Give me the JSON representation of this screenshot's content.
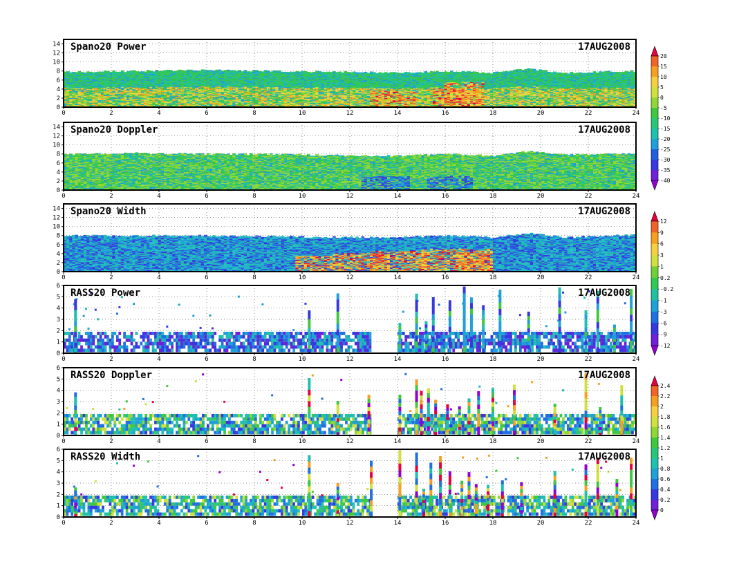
{
  "chart_data": [
    {
      "type": "heatmap",
      "title": "Spano20 Power",
      "date": "17AUG2008",
      "xlim": [
        0,
        24
      ],
      "x_ticks": [
        0,
        2,
        4,
        6,
        8,
        10,
        12,
        14,
        16,
        18,
        20,
        22,
        24
      ],
      "ylim": [
        0,
        15
      ],
      "y_ticks": [
        0,
        2,
        4,
        6,
        8,
        10,
        12,
        14
      ],
      "grid": true,
      "colorbar": "power",
      "echo_top": [
        [
          0,
          7.8
        ],
        [
          3,
          8.0
        ],
        [
          6,
          8.2
        ],
        [
          9,
          8.0
        ],
        [
          12,
          7.8
        ],
        [
          14,
          7.6
        ],
        [
          16,
          8.0
        ],
        [
          18,
          7.6
        ],
        [
          19.5,
          8.5
        ],
        [
          21,
          7.6
        ],
        [
          24,
          8.0
        ]
      ],
      "hotspots": [
        [
          13.8,
          2.0,
          1.0
        ],
        [
          16.5,
          2.5,
          1.0
        ],
        [
          16.8,
          4.0,
          0.8
        ]
      ]
    },
    {
      "type": "heatmap",
      "title": "Spano20 Doppler",
      "date": "17AUG2008",
      "xlim": [
        0,
        24
      ],
      "x_ticks": [
        0,
        2,
        4,
        6,
        8,
        10,
        12,
        14,
        16,
        18,
        20,
        22,
        24
      ],
      "ylim": [
        0,
        15
      ],
      "y_ticks": [
        0,
        2,
        4,
        6,
        8,
        10,
        12,
        14
      ],
      "grid": true,
      "colorbar": "power",
      "echo_top": [
        [
          0,
          8.0
        ],
        [
          3,
          8.2
        ],
        [
          6,
          8.0
        ],
        [
          9,
          8.0
        ],
        [
          12,
          7.6
        ],
        [
          14,
          7.6
        ],
        [
          16,
          8.0
        ],
        [
          18,
          7.6
        ],
        [
          19.5,
          8.6
        ],
        [
          21,
          7.8
        ],
        [
          24,
          8.2
        ]
      ],
      "hotspots": [
        [
          13.5,
          1.5,
          1.0
        ],
        [
          16.2,
          1.5,
          1.0
        ]
      ]
    },
    {
      "type": "heatmap",
      "title": "Spano20 Width",
      "date": "17AUG2008",
      "xlim": [
        0,
        24
      ],
      "x_ticks": [
        0,
        2,
        4,
        6,
        8,
        10,
        12,
        14,
        16,
        18,
        20,
        22,
        24
      ],
      "ylim": [
        0,
        15
      ],
      "y_ticks": [
        0,
        2,
        4,
        6,
        8,
        10,
        12,
        14
      ],
      "grid": true,
      "colorbar": "width",
      "echo_top": [
        [
          0,
          8.0
        ],
        [
          3,
          8.0
        ],
        [
          6,
          8.0
        ],
        [
          9,
          7.8
        ],
        [
          12,
          7.6
        ],
        [
          14,
          7.6
        ],
        [
          16,
          8.0
        ],
        [
          18,
          7.6
        ],
        [
          19.5,
          8.5
        ],
        [
          21,
          7.6
        ],
        [
          24,
          8.2
        ]
      ],
      "hotspots": [
        [
          10.5,
          2.0,
          0.8
        ],
        [
          12.5,
          2.5,
          1.2
        ],
        [
          14.0,
          3.0,
          1.2
        ],
        [
          16.5,
          3.5,
          1.5
        ],
        [
          17.2,
          2.5,
          0.8
        ]
      ]
    },
    {
      "type": "heatmap",
      "title": "RASS20 Power",
      "date": "17AUG2008",
      "xlim": [
        0,
        24
      ],
      "x_ticks": [
        0,
        2,
        4,
        6,
        8,
        10,
        12,
        14,
        16,
        18,
        20,
        22,
        24
      ],
      "ylim": [
        0,
        6
      ],
      "y_ticks": [
        0,
        1,
        2,
        3,
        4,
        5,
        6
      ],
      "grid": true,
      "colorbar": "width",
      "gap_hours": [
        [
          12.9,
          14.0
        ]
      ],
      "spikes": [
        0.5,
        10.3,
        11.5,
        14.1,
        14.8,
        15.2,
        15.5,
        16.2,
        16.8,
        17.1,
        17.6,
        18.3,
        19.5,
        20.8,
        21.9,
        22.4,
        23.1,
        23.8
      ]
    },
    {
      "type": "heatmap",
      "title": "RASS20 Doppler",
      "date": "17AUG2008",
      "xlim": [
        0,
        24
      ],
      "x_ticks": [
        0,
        2,
        4,
        6,
        8,
        10,
        12,
        14,
        16,
        18,
        20,
        22,
        24
      ],
      "ylim": [
        0,
        6
      ],
      "y_ticks": [
        0,
        1,
        2,
        3,
        4,
        5,
        6
      ],
      "grid": true,
      "colorbar": "doppler",
      "gap_hours": [
        [
          12.9,
          14.0
        ]
      ],
      "spikes": [
        0.5,
        10.3,
        11.5,
        12.8,
        14.1,
        14.8,
        15.0,
        15.3,
        15.6,
        16.1,
        16.6,
        17.0,
        17.4,
        18.0,
        18.9,
        20.6,
        21.9,
        22.5,
        23.4
      ]
    },
    {
      "type": "heatmap",
      "title": "RASS20 Width",
      "date": "17AUG2008",
      "xlim": [
        0,
        24
      ],
      "x_ticks": [
        0,
        2,
        4,
        6,
        8,
        10,
        12,
        14,
        16,
        18,
        20,
        22,
        24
      ],
      "ylim": [
        0,
        6
      ],
      "y_ticks": [
        0,
        1,
        2,
        3,
        4,
        5,
        6
      ],
      "grid": true,
      "colorbar": "doppler",
      "gap_hours": [
        [
          12.9,
          14.0
        ]
      ],
      "spikes": [
        0.5,
        10.3,
        11.5,
        12.9,
        14.1,
        14.8,
        15.1,
        15.4,
        15.8,
        16.2,
        16.7,
        17.0,
        17.3,
        17.8,
        18.4,
        19.2,
        20.6,
        21.9,
        22.4,
        23.2,
        23.8
      ]
    }
  ],
  "colorbars": {
    "power": {
      "labels": [
        "20",
        "15",
        "10",
        "5",
        "0",
        "-5",
        "-10",
        "-15",
        "-20",
        "-25",
        "-30",
        "-35",
        "-40"
      ],
      "colors": [
        "#e8003c",
        "#f06428",
        "#f5a020",
        "#f5d040",
        "#d0e040",
        "#90d838",
        "#40c840",
        "#28c878",
        "#20c0b0",
        "#20a0d8",
        "#2060e0",
        "#3838e0",
        "#7020d8",
        "#9400d0"
      ]
    },
    "width": {
      "labels": [
        "12",
        "9",
        "6",
        "3",
        "1",
        "0.2",
        "-0.2",
        "-1",
        "-3",
        "-6",
        "-9",
        "-12"
      ],
      "colors": [
        "#e8003c",
        "#f06428",
        "#f5a020",
        "#f5d040",
        "#d0e040",
        "#70d038",
        "#30c850",
        "#20c0a0",
        "#20a0d8",
        "#2070e0",
        "#3838e0",
        "#7020d8",
        "#9400d0"
      ]
    },
    "doppler": {
      "labels": [
        "2.4",
        "2.2",
        "2",
        "1.8",
        "1.6",
        "1.4",
        "1.2",
        "1",
        "0.8",
        "0.6",
        "0.4",
        "0.2",
        "0"
      ],
      "colors": [
        "#e8003c",
        "#f06428",
        "#f5a020",
        "#f5d040",
        "#d0e040",
        "#90d838",
        "#40c840",
        "#28c878",
        "#20c0b0",
        "#20a0d8",
        "#2070e0",
        "#3838e0",
        "#7020d8",
        "#9400d0"
      ]
    }
  }
}
